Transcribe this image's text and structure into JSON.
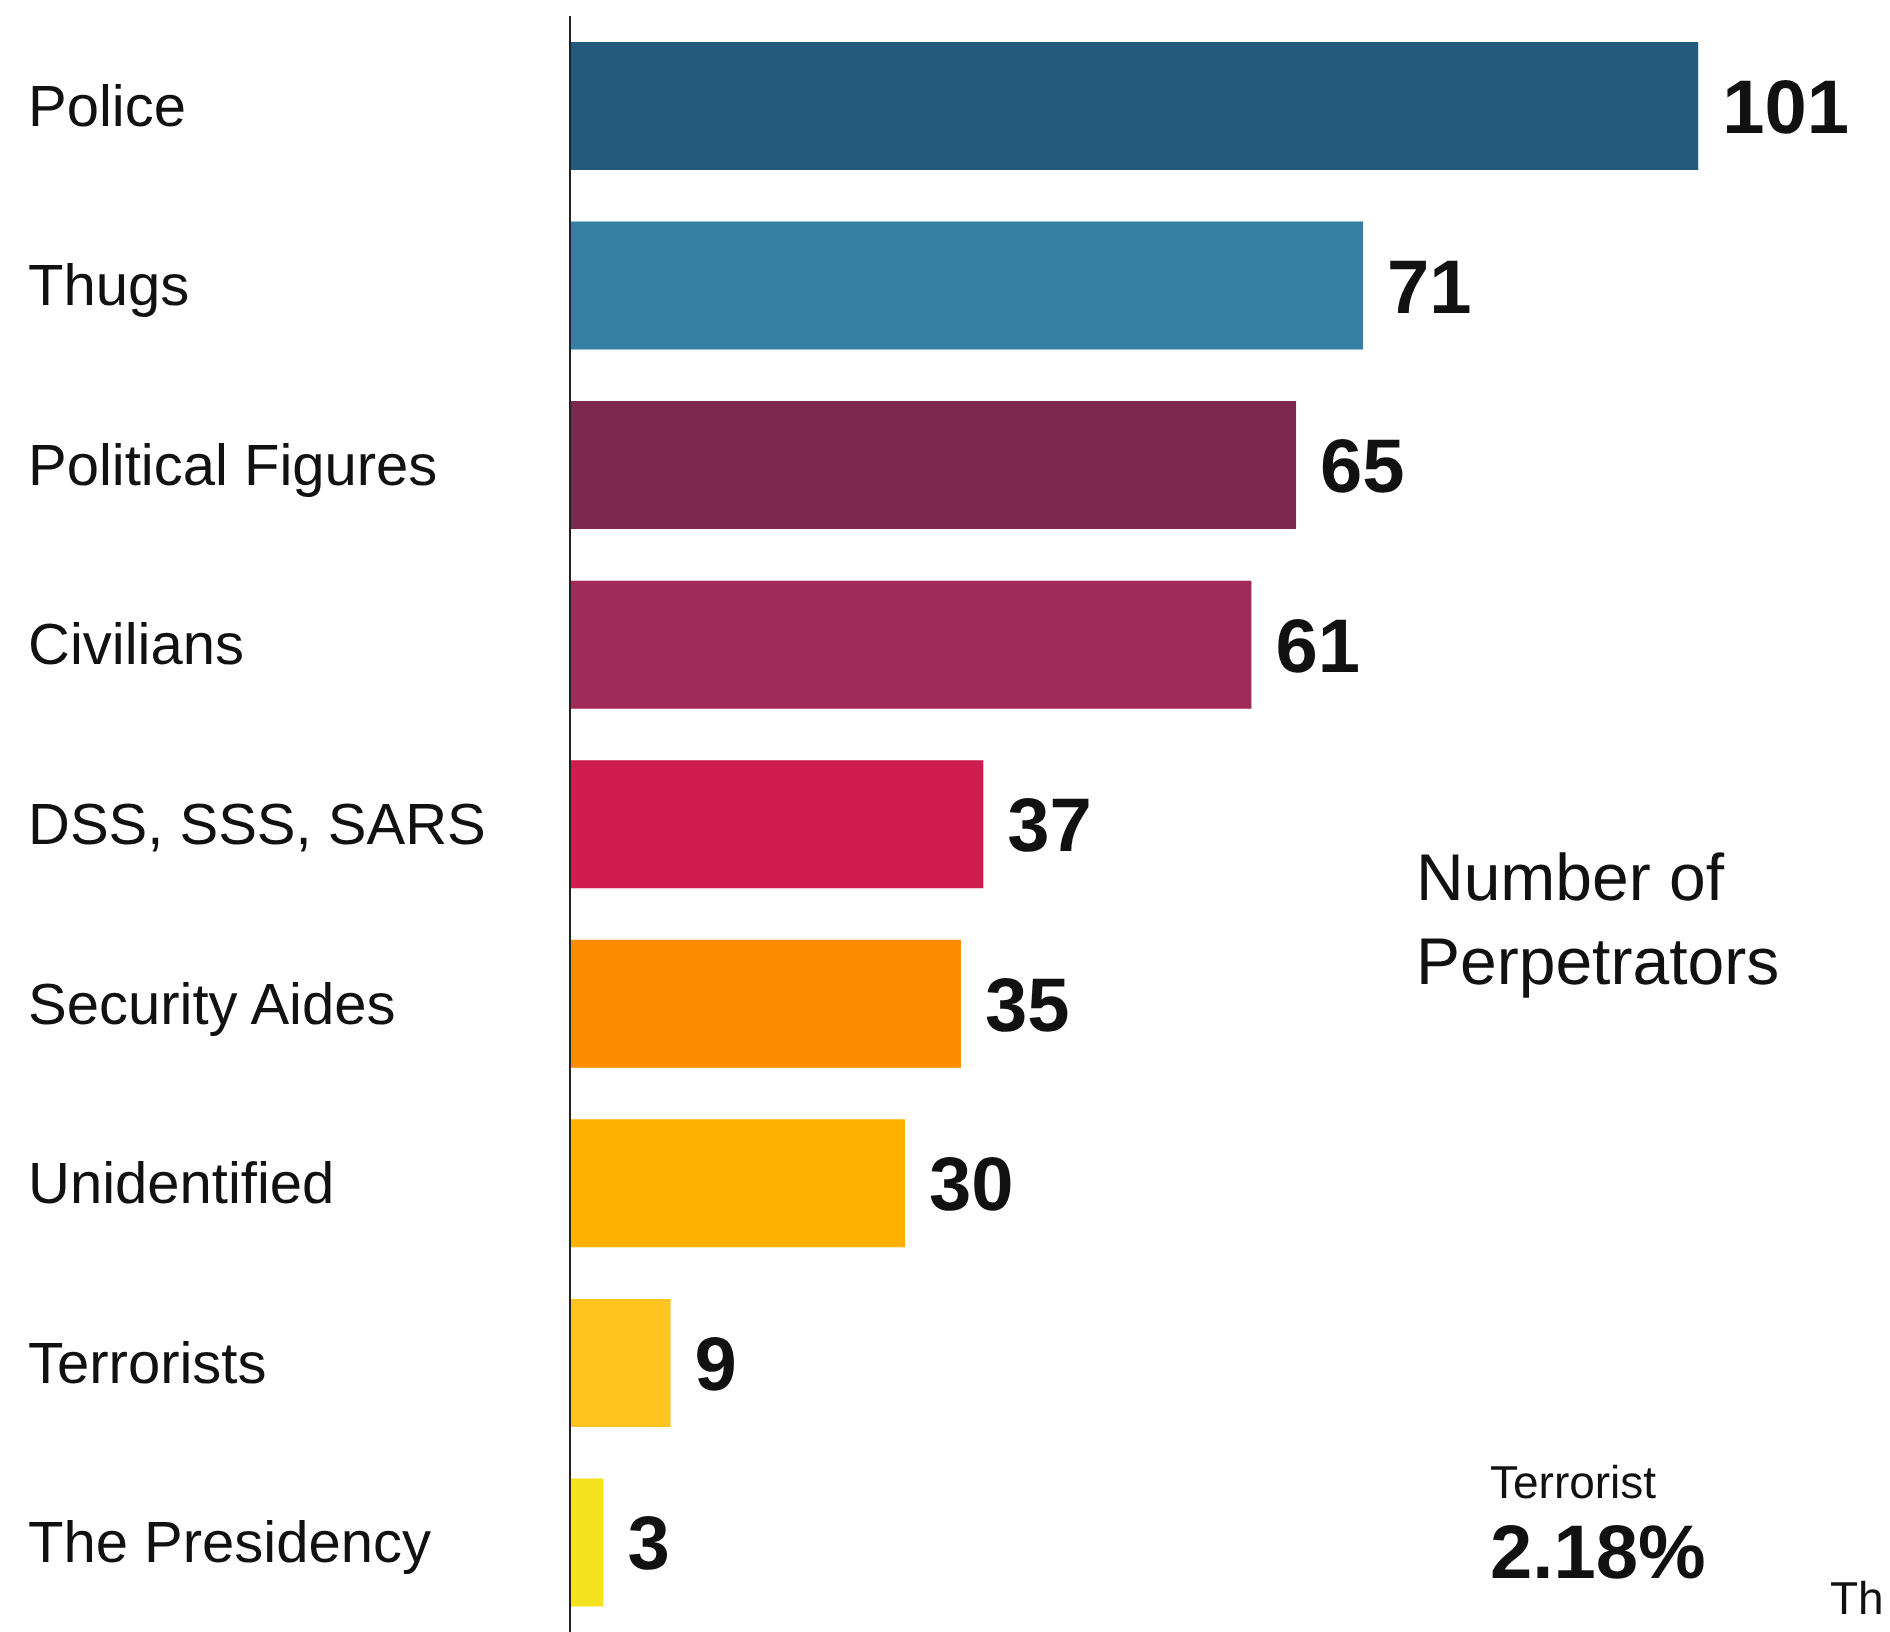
{
  "chart_data": {
    "type": "bar",
    "orientation": "horizontal",
    "xlabel": "Number of Perpetrators",
    "categories": [
      "Police",
      "Thugs",
      "Political Figures",
      "Civilians",
      "DSS, SSS, SARS",
      "Security Aides",
      "Unidentified",
      "Terrorists",
      "The Presidency"
    ],
    "values": [
      101,
      71,
      65,
      61,
      37,
      35,
      30,
      9,
      3
    ],
    "colors": [
      "#245a7b",
      "#3481a3",
      "#7b274e",
      "#a02b5a",
      "#cf1d4f",
      "#ff8c00",
      "#ffb100",
      "#ffc420",
      "#f4e31d"
    ],
    "data_labels": true,
    "annotations": [
      "Terrorist",
      "2.18%",
      "Th"
    ]
  }
}
